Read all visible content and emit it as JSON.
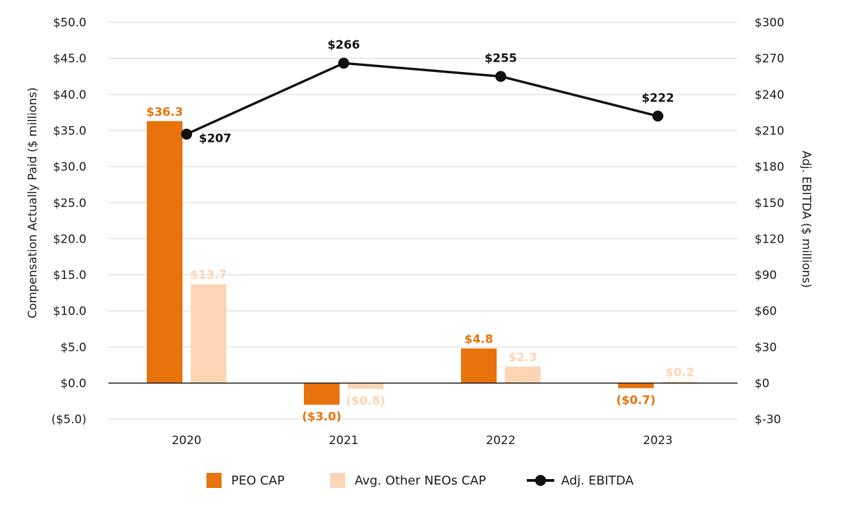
{
  "chart_data": {
    "type": "bar",
    "categories": [
      "2020",
      "2021",
      "2022",
      "2023"
    ],
    "series": [
      {
        "name": "PEO CAP",
        "type": "bar",
        "axis": "left",
        "color": "#E8720C",
        "values": [
          36.3,
          -3.0,
          4.8,
          -0.7
        ],
        "labels": [
          "$36.3",
          "($3.0)",
          "$4.8",
          "($0.7)"
        ]
      },
      {
        "name": "Avg. Other NEOs CAP",
        "type": "bar",
        "axis": "left",
        "color": "#FCD5B5",
        "values": [
          13.7,
          -0.8,
          2.3,
          0.2
        ],
        "labels": [
          "$13.7",
          "($0.8)",
          "$2.3",
          "$0.2"
        ]
      },
      {
        "name": "Adj. EBITDA",
        "type": "line",
        "axis": "right",
        "color": "#111111",
        "values": [
          207,
          266,
          255,
          222
        ],
        "labels": [
          "$207",
          "$266",
          "$255",
          "$222"
        ]
      }
    ],
    "ylabel": "Compensation Actually Paid ($ millions)",
    "y2label": "Adj. EBITDA ($ millions)",
    "ylim": [
      -5,
      50
    ],
    "y2lim": [
      -30,
      300
    ],
    "yticks": [
      "($5.0)",
      "$0.0",
      "$5.0",
      "$10.0",
      "$15.0",
      "$20.0",
      "$25.0",
      "$30.0",
      "$35.0",
      "$40.0",
      "$45.0",
      "$50.0"
    ],
    "y2ticks": [
      "$-30",
      "$0",
      "$30",
      "$60",
      "$90",
      "$120",
      "$150",
      "$180",
      "$210",
      "$240",
      "$270",
      "$300"
    ],
    "grid": true,
    "legend_position": "bottom"
  }
}
